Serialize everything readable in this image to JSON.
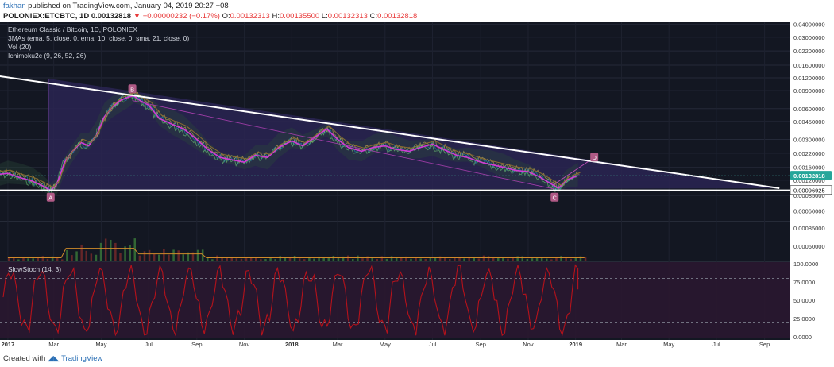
{
  "header": {
    "author": "fakhan",
    "published_text": "published on TradingView.com, January 04, 2019 20:27 +08",
    "symbol": "POLONIEX:ETCBTC, 1D",
    "last": "0.00132818",
    "change_arrow": "▼",
    "change": "−0.00000232 (−0.17%)",
    "ohlc": {
      "o_label": "O:",
      "o": "0.00132313",
      "h_label": "H:",
      "h": "0.00135500",
      "l_label": "L:",
      "l": "0.00132313",
      "c_label": "C:",
      "c": "0.00132818"
    }
  },
  "indicators": {
    "title": "Ethereum Classic / Bitcoin, 1D, POLONIEX",
    "mas": "3MAs (ema, 5, close, 0, ema, 10, close, 0, sma, 21, close, 0)",
    "vol": "Vol (20)",
    "ichimoku": "Ichimoku2c (9, 26, 52, 26)",
    "stoch": "SlowStoch (14, 3)"
  },
  "footer": {
    "prefix": "Created with",
    "brand": "TradingView"
  },
  "colors": {
    "background": "#131722",
    "triangle_fill": "#2a2452",
    "stoch_fill": "#2a1730",
    "stoch_line": "#b5121b",
    "trendline": "#ffffff",
    "price_badge": "#26a69a",
    "label_badge": "#b05a86"
  },
  "chart_data": [
    {
      "type": "line",
      "scale": "log",
      "title": "Ethereum Classic / Bitcoin, 1D, POLONIEX",
      "y_ticks": [
        "0.04000000",
        "0.03000000",
        "0.02200000",
        "0.01600000",
        "0.01200000",
        "0.00900000",
        "0.00600000",
        "0.00450000",
        "0.00300000",
        "0.00220000",
        "0.00160000",
        "0.00120000",
        "0.00085000",
        "0.00060000"
      ],
      "x_ticks": [
        "2017",
        "Mar",
        "May",
        "Jul",
        "Sep",
        "Nov",
        "2018",
        "Mar",
        "May",
        "Jul",
        "Sep",
        "Nov",
        "2019",
        "Mar",
        "May",
        "Jul",
        "Sep"
      ],
      "last_price": "0.00132818",
      "support_price": "0.00096925",
      "annotations": [
        {
          "label": "A",
          "date": "2017-02-25",
          "price": 0.0009
        },
        {
          "label": "B",
          "date": "2017-06-10",
          "price": 0.0093
        },
        {
          "label": "C",
          "date": "2018-12-05",
          "price": 0.00094
        },
        {
          "label": "D",
          "date": "2019-01-25",
          "price": 0.002
        }
      ],
      "trendline": {
        "start": {
          "date": "2016-12-20",
          "price": 0.0125
        },
        "end": {
          "date": "2019-09-20",
          "price": 0.001
        }
      },
      "price_series": {
        "dates": [
          "2016-12-15",
          "2017-01-01",
          "2017-01-15",
          "2017-02-01",
          "2017-02-15",
          "2017-02-25",
          "2017-03-05",
          "2017-03-15",
          "2017-03-25",
          "2017-04-05",
          "2017-04-15",
          "2017-04-25",
          "2017-05-05",
          "2017-05-15",
          "2017-05-25",
          "2017-06-05",
          "2017-06-12",
          "2017-06-20",
          "2017-07-01",
          "2017-07-15",
          "2017-08-01",
          "2017-08-15",
          "2017-09-01",
          "2017-09-15",
          "2017-10-01",
          "2017-10-15",
          "2017-11-01",
          "2017-11-15",
          "2017-12-01",
          "2017-12-15",
          "2018-01-01",
          "2018-01-15",
          "2018-02-01",
          "2018-02-15",
          "2018-03-01",
          "2018-03-15",
          "2018-04-01",
          "2018-04-15",
          "2018-05-01",
          "2018-05-15",
          "2018-06-01",
          "2018-06-15",
          "2018-07-01",
          "2018-07-15",
          "2018-08-01",
          "2018-08-15",
          "2018-09-01",
          "2018-09-15",
          "2018-10-01",
          "2018-10-15",
          "2018-11-01",
          "2018-11-15",
          "2018-12-01",
          "2018-12-10",
          "2018-12-20",
          "2019-01-04"
        ],
        "values": [
          0.00135,
          0.0014,
          0.00128,
          0.00118,
          0.00105,
          0.00095,
          0.0011,
          0.0018,
          0.0023,
          0.0028,
          0.0026,
          0.0033,
          0.005,
          0.0062,
          0.0072,
          0.0078,
          0.008,
          0.0072,
          0.0065,
          0.0048,
          0.0042,
          0.0038,
          0.003,
          0.0024,
          0.002,
          0.0019,
          0.0018,
          0.0021,
          0.002,
          0.0025,
          0.0029,
          0.0026,
          0.0032,
          0.0038,
          0.003,
          0.0025,
          0.0023,
          0.0025,
          0.0026,
          0.0024,
          0.0023,
          0.0025,
          0.0027,
          0.0024,
          0.0021,
          0.002,
          0.0018,
          0.0017,
          0.0016,
          0.0015,
          0.00145,
          0.0013,
          0.0011,
          0.001,
          0.0012,
          0.00133
        ]
      }
    },
    {
      "type": "area",
      "title": "Vol (20)",
      "y_ticks": [
        "0.00085000",
        "0.00060000"
      ]
    },
    {
      "type": "line",
      "title": "SlowStoch (14, 3)",
      "ylim": [
        0,
        100
      ],
      "y_ticks": [
        "100.0000",
        "75.0000",
        "50.0000",
        "25.0000",
        "0.0000"
      ],
      "last_value": 65
    }
  ]
}
